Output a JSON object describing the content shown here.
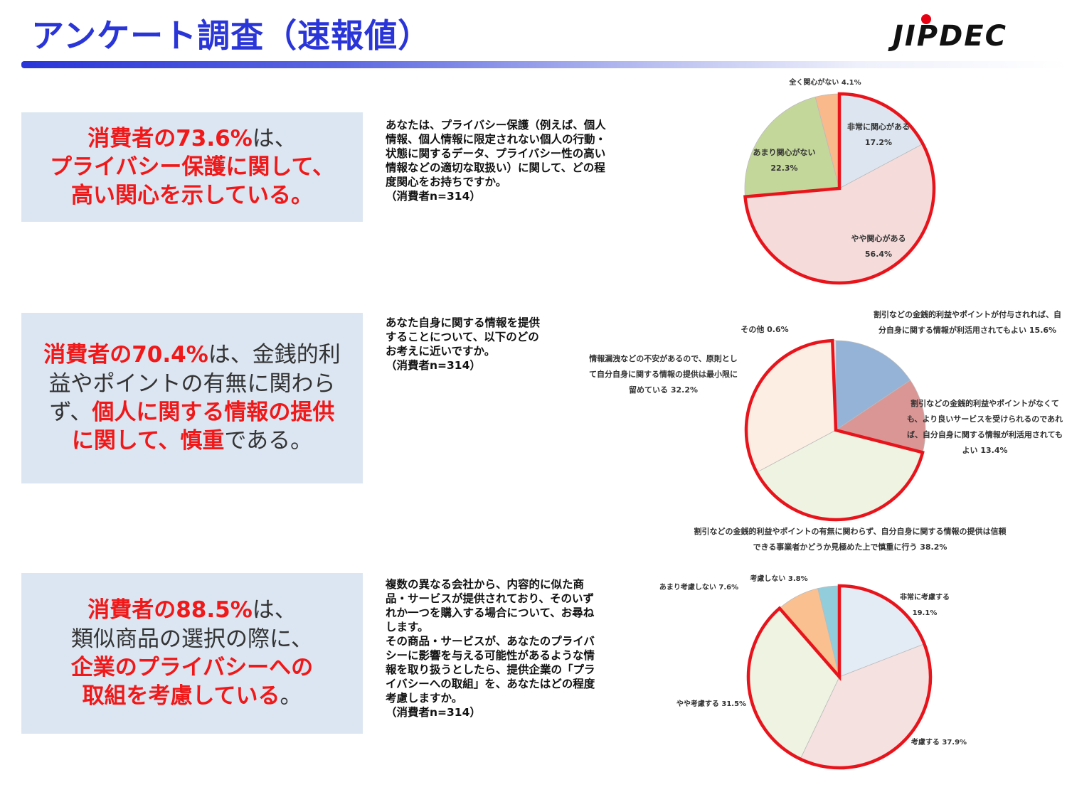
{
  "header": {
    "title": "アンケート調査（速報値）",
    "logo_text": "JIPDEC",
    "title_color": "#2a35d8"
  },
  "sections": [
    {
      "headline": [
        [
          {
            "text": "消費者の73.6%",
            "style": "red"
          },
          {
            "text": "は、",
            "style": "dark"
          }
        ],
        [
          {
            "text": "プライバシー保護に関して、",
            "style": "red"
          }
        ],
        [
          {
            "text": "高い関心を示している。",
            "style": "red"
          }
        ]
      ],
      "question": "あなたは、プライバシー保護（例えば、個人\n情報、個人情報に限定されない個人の行動・\n状態に関するデータ、プライバシー性の高い\n情報などの適切な取扱い）に関して、どの程\n度関心をお持ちですか。\n（消費者n=314）"
    },
    {
      "headline": [
        [
          {
            "text": "消費者の70.4%",
            "style": "red"
          },
          {
            "text": "は、金銭的利",
            "style": "dark"
          }
        ],
        [
          {
            "text": "益やポイントの有無に関わら",
            "style": "dark"
          }
        ],
        [
          {
            "text": "ず、",
            "style": "dark"
          },
          {
            "text": "個人に関する情報の提供",
            "style": "red"
          }
        ],
        [
          {
            "text": "に関して、慎重",
            "style": "red"
          },
          {
            "text": "である。",
            "style": "dark"
          }
        ]
      ],
      "question": "あなた自身に関する情報を提供\nすることについて、以下のどの\nお考えに近いですか。\n（消費者n=314）"
    },
    {
      "headline": [
        [
          {
            "text": "消費者の88.5%",
            "style": "red"
          },
          {
            "text": "は、",
            "style": "dark"
          }
        ],
        [
          {
            "text": "類似商品の選択の際に、",
            "style": "dark"
          }
        ],
        [
          {
            "text": "企業のプライバシーへの",
            "style": "red"
          }
        ],
        [
          {
            "text": "取組を考慮している",
            "style": "red"
          },
          {
            "text": "。",
            "style": "dark"
          }
        ]
      ],
      "question": "複数の異なる会社から、内容的に似た商\n品・サービスが提供されており、そのいず\nれか一つを購入する場合について、お尋ね\nします。\nその商品・サービスが、あなたのプライバ\nシーに影響を与える可能性があるような情\n報を取り扱うとしたら、提供企業の「プラ\nイバシーへの取組」を、あなたはどの程度\n考慮しますか。\n（消費者n=314）"
    }
  ],
  "chart_data": [
    {
      "type": "pie",
      "start": "top",
      "direction": "clockwise",
      "highlight_color": "#e8141c",
      "highlighted_slices": [
        0,
        1
      ],
      "slices": [
        {
          "label": "非常に関心がある",
          "value": 17.2,
          "color": "#dde6f0"
        },
        {
          "label": "やや関心がある",
          "value": 56.4,
          "color": "#f5dcdb"
        },
        {
          "label": "あまり関心がない",
          "value": 22.3,
          "color": "#c4d79b"
        },
        {
          "label": "全く関心がない",
          "value": 4.1,
          "color": "#f9b98a"
        }
      ],
      "labels": [
        "非常に関心がある\n17.2%",
        "やや関心がある\n56.4%",
        "あまり関心がない\n22.3%",
        "全く関心がない 4.1%"
      ]
    },
    {
      "type": "pie",
      "start": "top",
      "direction": "clockwise",
      "highlight_color": "#e8141c",
      "highlighted_slices": [
        2,
        3
      ],
      "slices": [
        {
          "label": "割引などの金銭的利益やポイントが付与されれば、自分自身に関する情報が利活用されてもよい",
          "value": 15.6,
          "color": "#95b3d7"
        },
        {
          "label": "割引などの金銭的利益やポイントがなくても、より良いサービスを受けられるのであれば、自分自身に関する情報が利活用されてもよい",
          "value": 13.4,
          "color": "#da9694"
        },
        {
          "label": "割引などの金銭的利益やポイントの有無に関わらず、自分自身に関する情報の提供は信頼できる事業者かどうか見極めた上で慎重に行う",
          "value": 38.2,
          "color": "#eef3e2"
        },
        {
          "label": "情報漏洩などの不安があるので、原則として自分自身に関する情報の提供は最小限に留めている",
          "value": 32.2,
          "color": "#fdeee3"
        },
        {
          "label": "その他",
          "value": 0.6,
          "color": "#f2f2f2"
        }
      ],
      "labels": [
        "割引などの金銭的利益やポイントが付与されれば、自\n分自身に関する情報が利活用されてもよい 15.6%",
        "割引などの金銭的利益やポイントがなくて\nも、より良いサービスを受けられるのであれ\nば、自分自身に関する情報が利活用されても\nよい 13.4%",
        "割引などの金銭的利益やポイントの有無に関わらず、自分自身に関する情報の提供は信頼\nできる事業者かどうか見極めた上で慎重に行う 38.2%",
        "情報漏洩などの不安があるので、原則とし\nて自分自身に関する情報の提供は最小限に\n留めている 32.2%",
        "その他 0.6%"
      ]
    },
    {
      "type": "pie",
      "start": "top",
      "direction": "clockwise",
      "highlight_color": "#e8141c",
      "highlighted_slices": [
        0,
        1,
        2
      ],
      "slices": [
        {
          "label": "非常に考慮する",
          "value": 19.1,
          "color": "#e3ebf5"
        },
        {
          "label": "考慮する",
          "value": 37.9,
          "color": "#f5e1e0"
        },
        {
          "label": "やや考慮する",
          "value": 31.5,
          "color": "#eef3e2"
        },
        {
          "label": "あまり考慮しない",
          "value": 7.6,
          "color": "#fac090"
        },
        {
          "label": "考慮しない",
          "value": 3.8,
          "color": "#92cddc"
        }
      ],
      "labels": [
        "非常に考慮する\n19.1%",
        "考慮する 37.9%",
        "やや考慮する 31.5%",
        "あまり考慮しない 7.6%",
        "考慮しない 3.8%"
      ]
    }
  ]
}
